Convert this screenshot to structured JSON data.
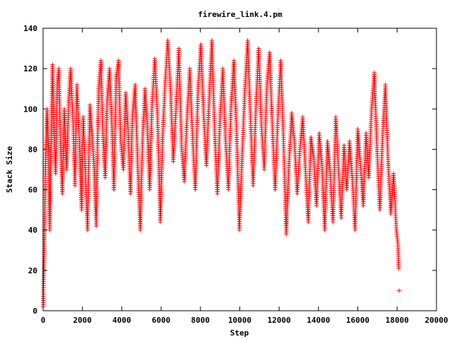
{
  "chart_data": {
    "type": "scatter",
    "title": "firewire_link.4.pm",
    "xlabel": "Step",
    "ylabel": "Stack Size",
    "xlim": [
      0,
      20000
    ],
    "ylim": [
      0,
      140
    ],
    "xticks": [
      0,
      2000,
      4000,
      6000,
      8000,
      10000,
      12000,
      14000,
      16000,
      18000,
      20000
    ],
    "yticks": [
      0,
      20,
      40,
      60,
      80,
      100,
      120,
      140
    ],
    "grid": false,
    "legend": "none",
    "marker": "+",
    "color": "#ff0000",
    "series": [
      {
        "x": [
          0,
          60,
          120,
          200,
          280,
          340,
          420,
          480,
          540,
          640,
          720,
          800,
          880,
          980,
          1080,
          1200,
          1300,
          1400,
          1540,
          1620,
          1720,
          1840,
          1960,
          2040,
          2140,
          2260,
          2380,
          2480,
          2600,
          2700,
          2820,
          2940,
          3040,
          3160,
          3260,
          3380,
          3500,
          3600,
          3720,
          3840,
          3940,
          4080,
          4200,
          4320,
          4440,
          4540,
          4680,
          4820,
          4940,
          5060,
          5180,
          5300,
          5420,
          5540,
          5680,
          5820,
          5960,
          6080,
          6200,
          6340,
          6480,
          6620,
          6760,
          6900,
          7040,
          7180,
          7320,
          7460,
          7600,
          7740,
          7880,
          8020,
          8160,
          8300,
          8440,
          8580,
          8720,
          8860,
          9000,
          9140,
          9280,
          9420,
          9560,
          9700,
          9840,
          9980,
          10120,
          10260,
          10400,
          10540,
          10680,
          10820,
          10960,
          11100,
          11240,
          11380,
          11520,
          11660,
          11800,
          11940,
          12080,
          12220,
          12360,
          12500,
          12640,
          12780,
          12920,
          13060,
          13200,
          13340,
          13480,
          13620,
          13760,
          13900,
          14040,
          14180,
          14320,
          14460,
          14600,
          14740,
          14880,
          15020,
          15160,
          15300,
          15440,
          15580,
          15720,
          15860,
          16000,
          16140,
          16280,
          16420,
          16560,
          16700,
          16840,
          16980,
          17120,
          17260,
          17400,
          17540,
          17680,
          17820,
          17960,
          18040,
          18080,
          18100
        ],
        "y": [
          2,
          30,
          72,
          100,
          80,
          40,
          88,
          122,
          95,
          68,
          112,
          120,
          85,
          58,
          100,
          70,
          104,
          120,
          90,
          62,
          112,
          85,
          50,
          96,
          72,
          40,
          102,
          90,
          70,
          42,
          110,
          124,
          88,
          66,
          104,
          120,
          92,
          60,
          116,
          124,
          85,
          70,
          108,
          90,
          58,
          96,
          112,
          70,
          40,
          85,
          110,
          92,
          60,
          102,
          125,
          96,
          44,
          86,
          112,
          134,
          110,
          74,
          100,
          130,
          82,
          64,
          96,
          120,
          86,
          60,
          110,
          132,
          98,
          72,
          104,
          134,
          90,
          58,
          96,
          120,
          84,
          60,
          102,
          124,
          88,
          40,
          76,
          110,
          134,
          96,
          62,
          100,
          130,
          92,
          70,
          112,
          128,
          90,
          60,
          96,
          124,
          86,
          38,
          72,
          98,
          84,
          58,
          80,
          96,
          70,
          44,
          86,
          76,
          52,
          88,
          72,
          40,
          84,
          68,
          44,
          96,
          70,
          46,
          82,
          60,
          84,
          66,
          40,
          90,
          72,
          52,
          88,
          66,
          100,
          118,
          80,
          50,
          86,
          112,
          74,
          48,
          68,
          40,
          33,
          21,
          10
        ]
      }
    ]
  }
}
